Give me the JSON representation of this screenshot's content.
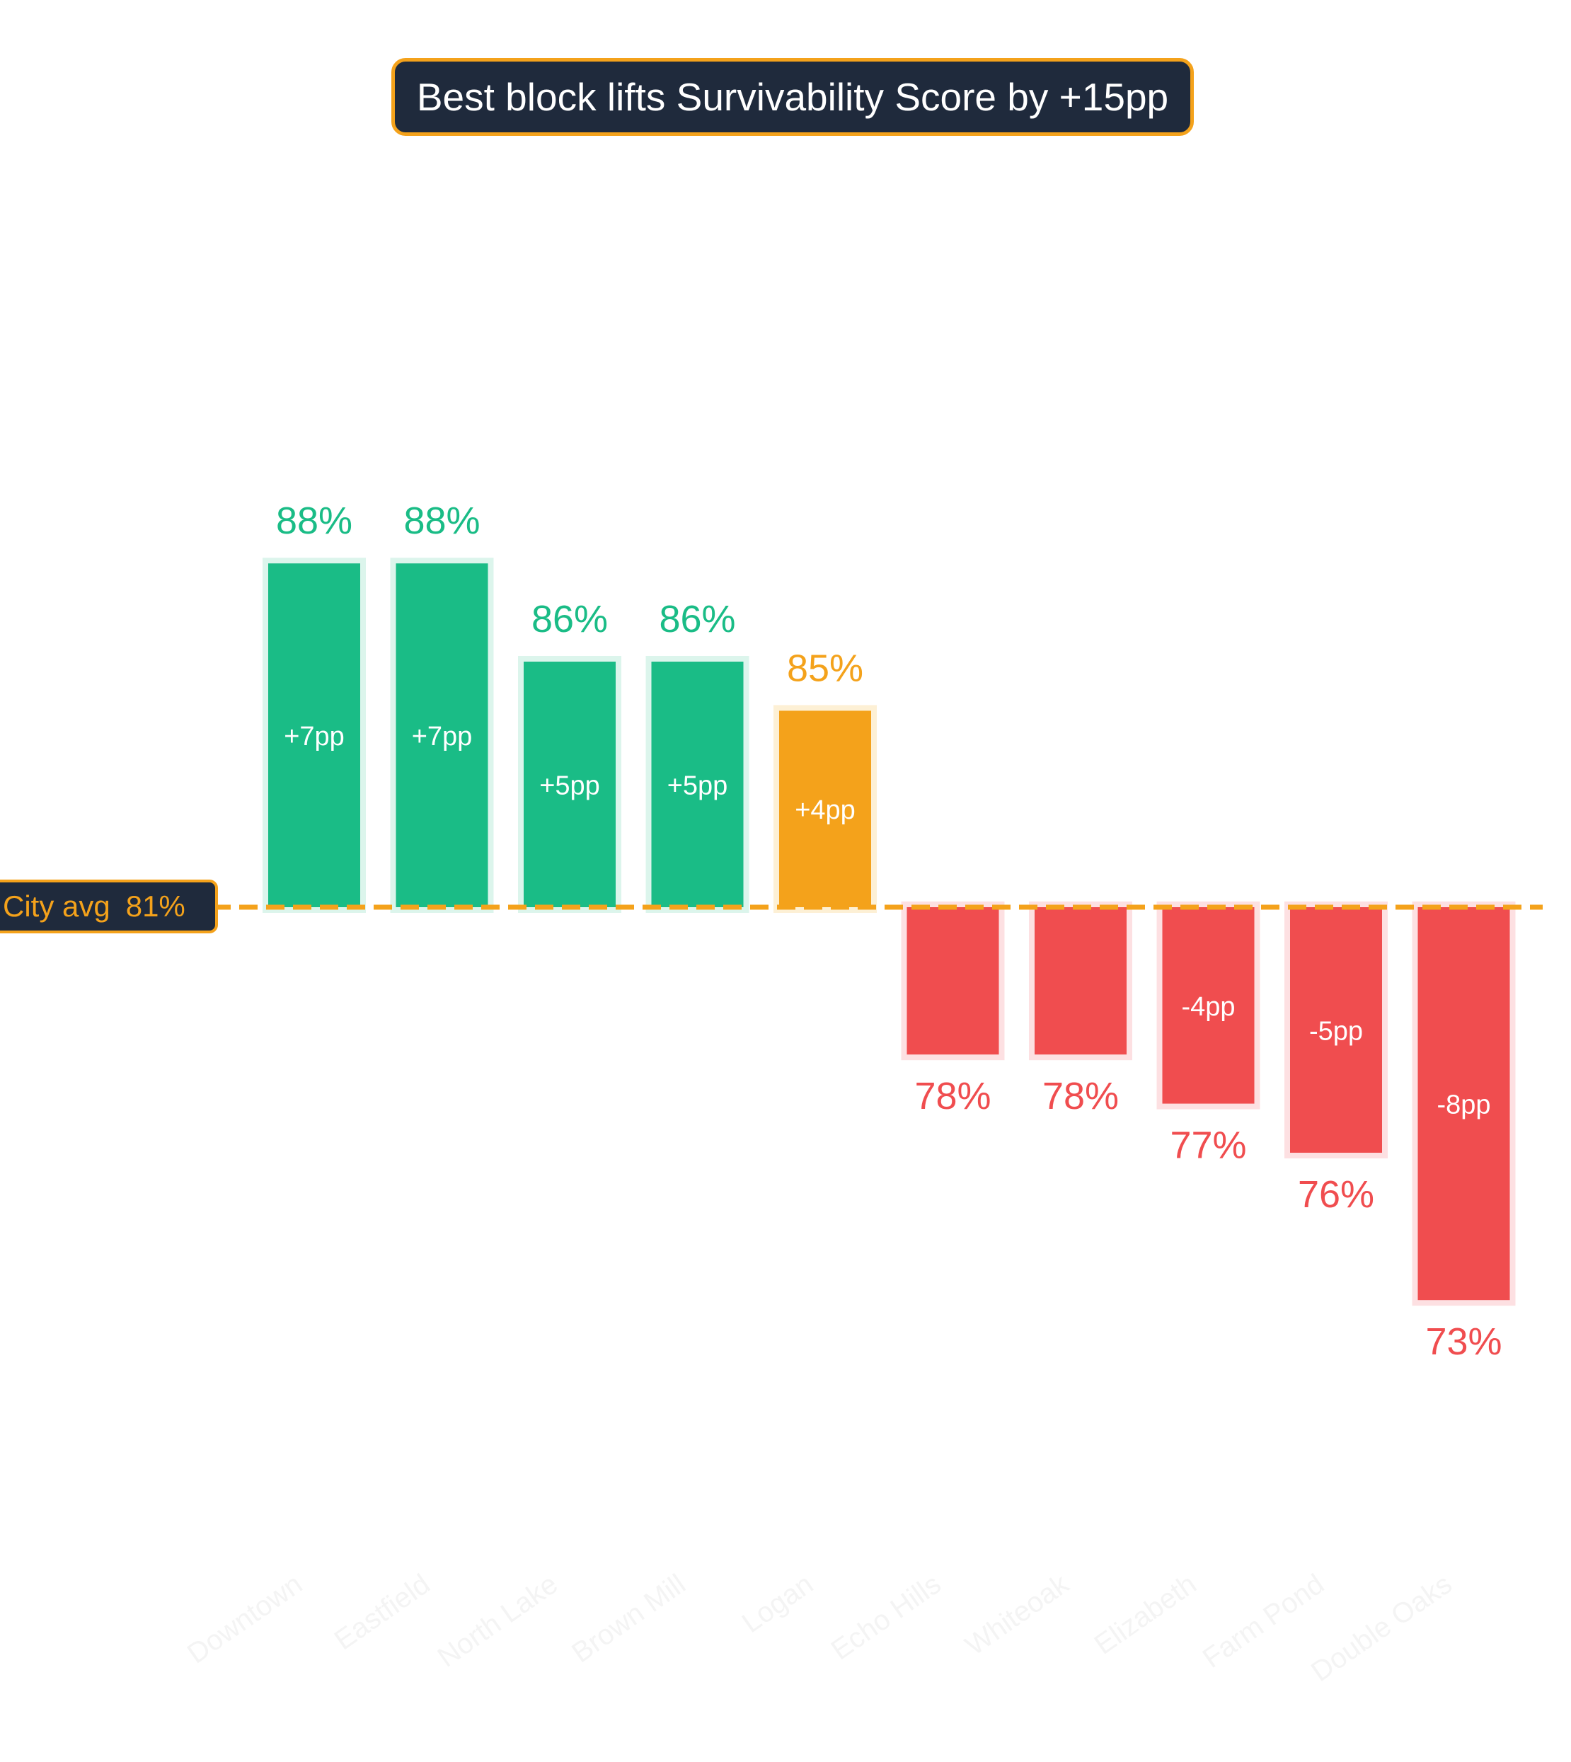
{
  "header": {
    "title": "Best block lifts Survivability Score by +15pp"
  },
  "reference": {
    "label": "City avg",
    "value_label": "81%"
  },
  "colors": {
    "above": "#1abc86",
    "highlight": "#f4a21b",
    "below": "#f04d4f",
    "above_halo": "#dcf5ec",
    "highlight_halo": "#fdf0d5",
    "below_halo": "#fde0e2",
    "title_bg": "#1f2a3c",
    "avg_line": "#f4a21b"
  },
  "chart_data": {
    "type": "bar",
    "title": "Best block lifts Survivability Score by +15pp",
    "baseline": 81,
    "baseline_label": "City avg  81%",
    "categories": [
      "Downtown",
      "Eastfield",
      "North Lake",
      "Brown Mill",
      "Logan",
      "Echo Hills",
      "Whiteoak",
      "Elizabeth",
      "Farm Pond",
      "Double Oaks"
    ],
    "values": [
      88,
      88,
      86,
      86,
      85,
      78,
      78,
      77,
      76,
      73
    ],
    "value_labels": [
      "88%",
      "88%",
      "86%",
      "86%",
      "85%",
      "78%",
      "78%",
      "77%",
      "76%",
      "73%"
    ],
    "delta_labels": [
      "+7pp",
      "+7pp",
      "+5pp",
      "+5pp",
      "+4pp",
      "",
      "",
      "-4pp",
      "-5pp",
      "-8pp"
    ],
    "highlight_index": 4,
    "ylim": [
      68,
      96
    ],
    "grid": false,
    "legend": "none"
  }
}
